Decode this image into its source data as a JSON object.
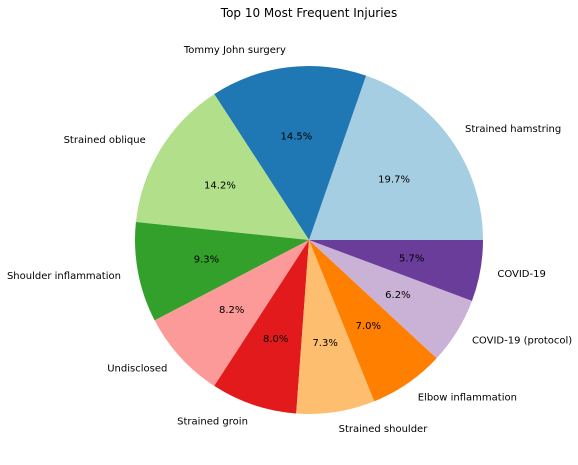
{
  "chart_data": {
    "type": "pie",
    "title": "Top 10 Most Frequent Injuries",
    "start_angle_deg": 0,
    "direction": "counterclockwise",
    "slices": [
      {
        "label": "Strained hamstring",
        "value": 19.7,
        "pct_label": "19.7%",
        "color": "#a6cee3"
      },
      {
        "label": "Tommy John surgery",
        "value": 14.5,
        "pct_label": "14.5%",
        "color": "#1f78b4"
      },
      {
        "label": "Strained oblique",
        "value": 14.2,
        "pct_label": "14.2%",
        "color": "#b2df8a"
      },
      {
        "label": "Shoulder inflammation",
        "value": 9.3,
        "pct_label": "9.3%",
        "color": "#33a02c"
      },
      {
        "label": "Undisclosed",
        "value": 8.2,
        "pct_label": "8.2%",
        "color": "#fb9a99"
      },
      {
        "label": "Strained groin",
        "value": 8.0,
        "pct_label": "8.0%",
        "color": "#e31a1c"
      },
      {
        "label": "Strained shoulder",
        "value": 7.3,
        "pct_label": "7.3%",
        "color": "#fdbf6f"
      },
      {
        "label": "Elbow inflammation",
        "value": 7.0,
        "pct_label": "7.0%",
        "color": "#ff7f00"
      },
      {
        "label": "COVID-19 (protocol)",
        "value": 6.2,
        "pct_label": "6.2%",
        "color": "#cab2d6"
      },
      {
        "label": "COVID-19",
        "value": 5.7,
        "pct_label": "5.7%",
        "color": "#6a3d9a"
      }
    ]
  }
}
